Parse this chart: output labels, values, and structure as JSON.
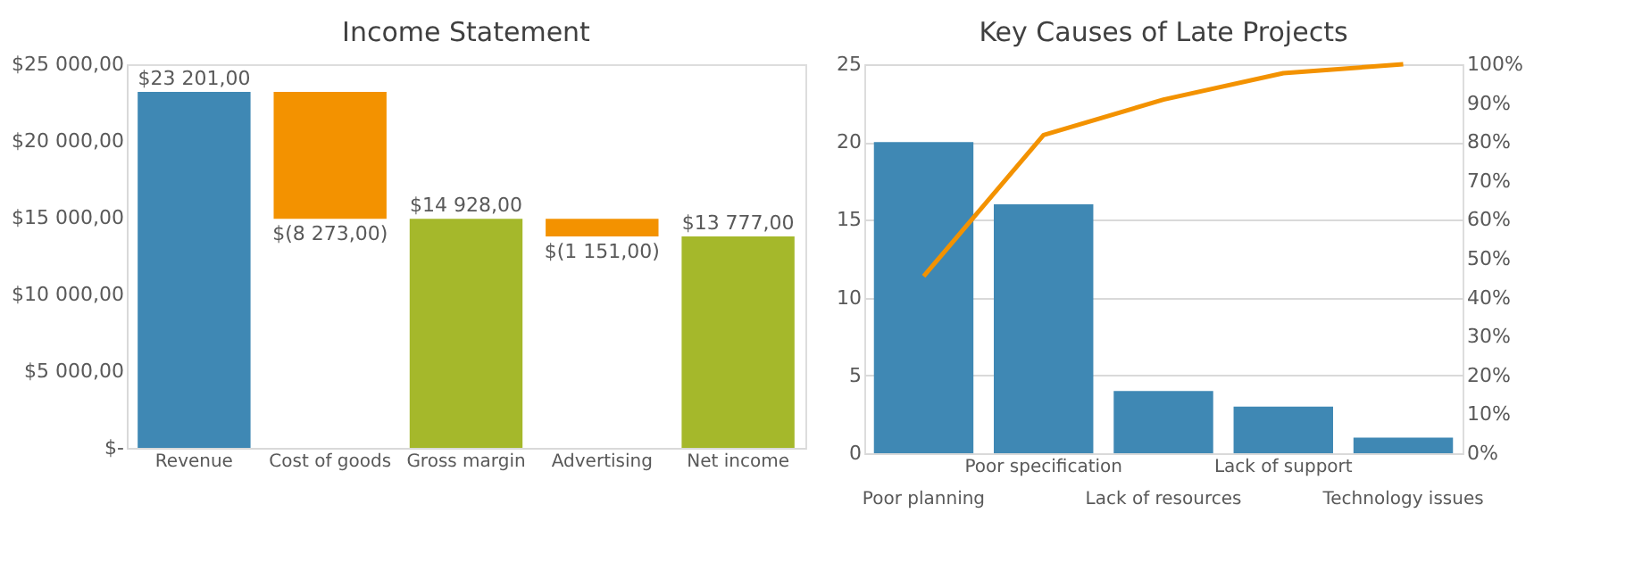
{
  "chart_data": [
    {
      "type": "bar",
      "title": "Income Statement",
      "categories": [
        "Revenue",
        "Cost of goods",
        "Gross margin",
        "Advertising",
        "Net income"
      ],
      "values": [
        23201,
        -8273,
        14928,
        -1151,
        13777
      ],
      "base": [
        0,
        23201,
        0,
        14928,
        0
      ],
      "colors": [
        "#3f88b4",
        "#f39200",
        "#a5b82b",
        "#f39200",
        "#a5b82b"
      ],
      "value_labels": [
        "$23 201,00",
        "$(8 273,00)",
        "$14 928,00",
        "$(1 151,00)",
        "$13 777,00"
      ],
      "ylim": [
        0,
        25000
      ],
      "yticks": [
        {
          "value": 0,
          "label": "$-"
        },
        {
          "value": 5000,
          "label": "$5 000,00"
        },
        {
          "value": 10000,
          "label": "$10 000,00"
        },
        {
          "value": 15000,
          "label": "$15 000,00"
        },
        {
          "value": 20000,
          "label": "$20 000,00"
        },
        {
          "value": 25000,
          "label": "$25 000,00"
        }
      ]
    },
    {
      "type": "bar",
      "title": "Key Causes of Late Projects",
      "categories": [
        "Poor planning",
        "Poor specification",
        "Lack of resources",
        "Lack of support",
        "Technology issues"
      ],
      "series": [
        {
          "type": "bar",
          "color": "#3f88b4",
          "values": [
            20,
            16,
            4,
            3,
            1
          ]
        },
        {
          "type": "line",
          "color": "#f39200",
          "axis": "y2",
          "values": [
            45.5,
            81.8,
            90.9,
            97.7,
            100
          ]
        }
      ],
      "ylim": [
        0,
        25
      ],
      "yticks": [
        0,
        5,
        10,
        15,
        20,
        25
      ],
      "y2lim": [
        0,
        100
      ],
      "y2ticks": [
        {
          "value": 0,
          "label": "0%"
        },
        {
          "value": 10,
          "label": "10%"
        },
        {
          "value": 20,
          "label": "20%"
        },
        {
          "value": 30,
          "label": "30%"
        },
        {
          "value": 40,
          "label": "40%"
        },
        {
          "value": 50,
          "label": "50%"
        },
        {
          "value": 60,
          "label": "60%"
        },
        {
          "value": 70,
          "label": "70%"
        },
        {
          "value": 80,
          "label": "80%"
        },
        {
          "value": 90,
          "label": "90%"
        },
        {
          "value": 100,
          "label": "100%"
        }
      ],
      "grid": "y",
      "marker": "none"
    }
  ]
}
